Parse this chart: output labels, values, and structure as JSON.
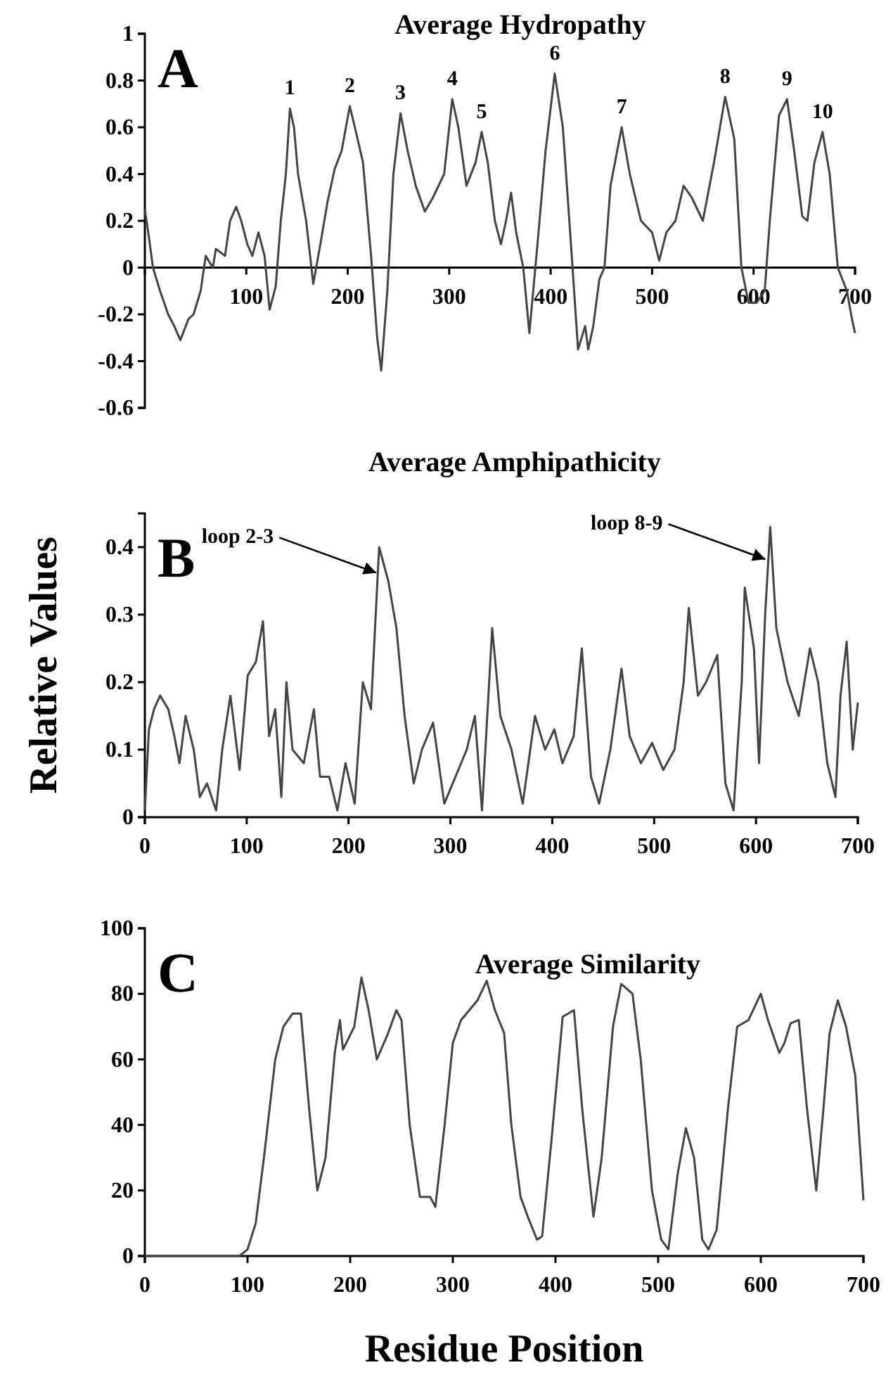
{
  "chart_data": [
    {
      "type": "line",
      "title": "Average Hydropathy",
      "color": "#444444",
      "xlim": [
        0,
        700
      ],
      "ylim": [
        -0.6,
        1
      ],
      "xticks": [
        100,
        200,
        300,
        400,
        500,
        600,
        700
      ],
      "yticks": [
        -0.6,
        -0.4,
        -0.2,
        0,
        0.2,
        0.4,
        0.6,
        0.8,
        1
      ],
      "x": [
        0,
        4,
        8,
        15,
        23,
        29,
        35,
        43,
        48,
        55,
        60,
        67,
        70,
        79,
        84,
        90,
        95,
        101,
        106,
        112,
        118,
        123,
        129,
        134,
        139,
        143,
        147,
        151,
        159,
        166,
        173,
        180,
        187,
        194,
        202,
        207,
        215,
        223,
        229,
        233,
        239,
        245,
        252,
        259,
        267,
        276,
        284,
        295,
        303,
        309,
        317,
        326,
        332,
        338,
        345,
        351,
        356,
        361,
        366,
        373,
        379,
        387,
        395,
        404,
        412,
        420,
        427,
        434,
        437,
        442,
        448,
        453,
        459,
        470,
        478,
        489,
        500,
        507,
        514,
        523,
        531,
        539,
        550,
        561,
        572,
        581,
        588,
        595,
        603,
        611,
        616,
        625,
        633,
        640,
        648,
        653,
        660,
        668,
        675,
        683,
        692,
        697,
        700
      ],
      "values": [
        0.25,
        0.13,
        0,
        -0.1,
        -0.2,
        -0.25,
        -0.31,
        -0.22,
        -0.2,
        -0.1,
        0.05,
        0,
        0.08,
        0.05,
        0.2,
        0.26,
        0.2,
        0.1,
        0.05,
        0.15,
        0.05,
        -0.18,
        -0.08,
        0.2,
        0.4,
        0.68,
        0.6,
        0.4,
        0.2,
        -0.07,
        0.1,
        0.28,
        0.42,
        0.5,
        0.69,
        0.6,
        0.45,
        0.05,
        -0.3,
        -0.44,
        -0.1,
        0.4,
        0.66,
        0.5,
        0.35,
        0.24,
        0.3,
        0.4,
        0.72,
        0.6,
        0.35,
        0.45,
        0.58,
        0.45,
        0.2,
        0.1,
        0.2,
        0.32,
        0.15,
        0,
        -0.28,
        0.1,
        0.5,
        0.83,
        0.6,
        0.1,
        -0.35,
        -0.25,
        -0.35,
        -0.25,
        -0.05,
        0,
        0.35,
        0.6,
        0.4,
        0.2,
        0.15,
        0.03,
        0.15,
        0.2,
        0.35,
        0.3,
        0.2,
        0.45,
        0.73,
        0.55,
        0,
        -0.15,
        -0.15,
        -0.1,
        0.2,
        0.65,
        0.72,
        0.5,
        0.22,
        0.2,
        0.45,
        0.58,
        0.4,
        0,
        -0.1,
        -0.22,
        -0.28
      ],
      "annotations": [
        "A",
        {
          "text": "1",
          "x": 143,
          "y": 0.68
        },
        {
          "text": "2",
          "x": 202,
          "y": 0.69
        },
        {
          "text": "3",
          "x": 252,
          "y": 0.66
        },
        {
          "text": "4",
          "x": 303,
          "y": 0.72
        },
        {
          "text": "5",
          "x": 332,
          "y": 0.58
        },
        {
          "text": "6",
          "x": 404,
          "y": 0.83
        },
        {
          "text": "7",
          "x": 470,
          "y": 0.6
        },
        {
          "text": "8",
          "x": 572,
          "y": 0.73
        },
        {
          "text": "9",
          "x": 633,
          "y": 0.72
        },
        {
          "text": "10",
          "x": 668,
          "y": 0.58
        }
      ]
    },
    {
      "type": "line",
      "title": "Average Amphipathicity",
      "ylabel": "Relative Values",
      "color": "#444444",
      "xlim": [
        0,
        700
      ],
      "ylim": [
        0,
        0.45
      ],
      "xticks": [
        0,
        100,
        200,
        300,
        400,
        500,
        600,
        700
      ],
      "yticks": [
        0,
        0.1,
        0.2,
        0.3,
        0.4
      ],
      "x": [
        0,
        4,
        9,
        15,
        23,
        29,
        34,
        40,
        48,
        54,
        61,
        70,
        76,
        84,
        93,
        101,
        109,
        116,
        122,
        128,
        134,
        139,
        145,
        156,
        166,
        172,
        181,
        189,
        197,
        206,
        214,
        222,
        230,
        239,
        247,
        255,
        264,
        272,
        283,
        294,
        305,
        316,
        324,
        331,
        341,
        349,
        360,
        371,
        383,
        393,
        402,
        410,
        421,
        429,
        438,
        446,
        457,
        468,
        476,
        487,
        498,
        509,
        520,
        529,
        534,
        543,
        551,
        562,
        570,
        578,
        586,
        589,
        598,
        603,
        609,
        614,
        620,
        631,
        642,
        653,
        661,
        670,
        678,
        683,
        689,
        695,
        700
      ],
      "values": [
        0.01,
        0.13,
        0.16,
        0.18,
        0.16,
        0.12,
        0.08,
        0.15,
        0.1,
        0.03,
        0.05,
        0.01,
        0.1,
        0.18,
        0.07,
        0.21,
        0.23,
        0.29,
        0.12,
        0.16,
        0.03,
        0.2,
        0.1,
        0.08,
        0.16,
        0.06,
        0.06,
        0.01,
        0.08,
        0.02,
        0.2,
        0.16,
        0.4,
        0.35,
        0.28,
        0.15,
        0.05,
        0.1,
        0.14,
        0.02,
        0.06,
        0.1,
        0.15,
        0.01,
        0.28,
        0.15,
        0.1,
        0.02,
        0.15,
        0.1,
        0.13,
        0.08,
        0.12,
        0.25,
        0.06,
        0.02,
        0.1,
        0.22,
        0.12,
        0.08,
        0.11,
        0.07,
        0.1,
        0.2,
        0.31,
        0.18,
        0.2,
        0.24,
        0.05,
        0.01,
        0.2,
        0.34,
        0.25,
        0.08,
        0.3,
        0.43,
        0.28,
        0.2,
        0.15,
        0.25,
        0.2,
        0.08,
        0.03,
        0.18,
        0.26,
        0.1,
        0.17
      ],
      "annotations": [
        "B",
        {
          "text": "loop 2-3",
          "x": 230,
          "y": 0.36
        },
        {
          "text": "loop 8-9",
          "x": 612,
          "y": 0.38
        }
      ]
    },
    {
      "type": "line",
      "title": "Average Similarity",
      "xlabel": "Residue Position",
      "color": "#444444",
      "xlim": [
        0,
        700
      ],
      "ylim": [
        0,
        100
      ],
      "xticks": [
        0,
        100,
        200,
        300,
        400,
        500,
        600,
        700
      ],
      "yticks": [
        0,
        20,
        40,
        60,
        80,
        100
      ],
      "x": [
        0,
        92,
        100,
        108,
        116,
        127,
        135,
        144,
        152,
        160,
        168,
        176,
        185,
        190,
        193,
        204,
        211,
        218,
        226,
        237,
        245,
        250,
        258,
        268,
        278,
        283,
        292,
        300,
        308,
        324,
        333,
        341,
        350,
        357,
        366,
        373,
        382,
        387,
        396,
        407,
        418,
        426,
        437,
        445,
        456,
        464,
        475,
        483,
        494,
        503,
        510,
        519,
        527,
        535,
        543,
        549,
        557,
        568,
        577,
        588,
        600,
        607,
        618,
        623,
        629,
        637,
        645,
        654,
        661,
        667,
        675,
        683,
        692,
        700
      ],
      "values": [
        0,
        0,
        2,
        10,
        30,
        60,
        70,
        74,
        74,
        45,
        20,
        30,
        62,
        72,
        63,
        70,
        85,
        75,
        60,
        68,
        75,
        72,
        40,
        18,
        18,
        15,
        40,
        65,
        72,
        78,
        84,
        75,
        68,
        40,
        18,
        12,
        5,
        6,
        35,
        73,
        75,
        45,
        12,
        30,
        70,
        83,
        80,
        60,
        20,
        5,
        2,
        25,
        39,
        30,
        5,
        2,
        8,
        45,
        70,
        72,
        80,
        72,
        62,
        65,
        71,
        72,
        45,
        20,
        45,
        68,
        78,
        70,
        55,
        17
      ],
      "annotations": [
        "C"
      ]
    }
  ]
}
